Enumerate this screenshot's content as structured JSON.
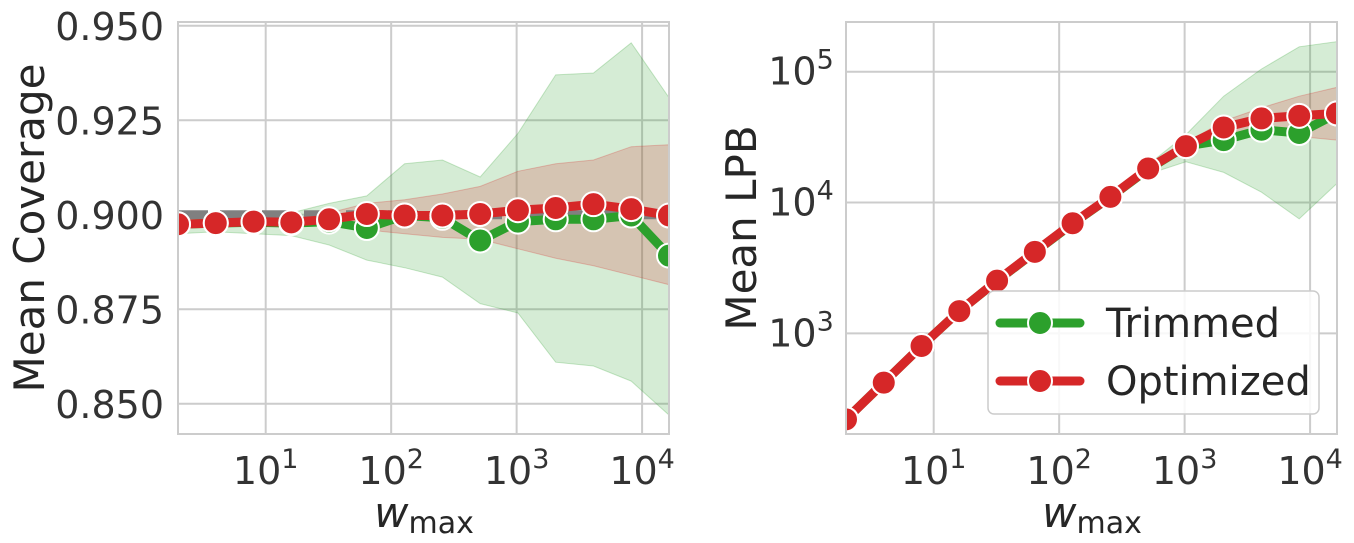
{
  "colors": {
    "trimmed": "#2ca02c",
    "optimized": "#d62728",
    "target": "#808080",
    "grid": "#cccccc",
    "spine": "#cccccc"
  },
  "legend": {
    "trimmed": "Trimmed",
    "optimized": "Optimized"
  },
  "chart_data": [
    {
      "type": "line",
      "xlabel": "w_max",
      "ylabel": "Mean Coverage",
      "xscale": "log",
      "xlim": [
        2,
        16384
      ],
      "ylim": [
        0.842,
        0.951
      ],
      "x_ticks": [
        {
          "v": 10,
          "m": "1"
        },
        {
          "v": 100,
          "m": "2"
        },
        {
          "v": 1000,
          "m": "3"
        },
        {
          "v": 10000,
          "m": "4"
        }
      ],
      "y_ticks": [
        "0.850",
        "0.875",
        "0.900",
        "0.925",
        "0.950"
      ],
      "y_tick_values": [
        0.85,
        0.875,
        0.9,
        0.925,
        0.95
      ],
      "target_line": 0.9,
      "x": [
        2,
        4,
        8,
        16,
        32,
        64,
        128,
        256,
        512,
        1024,
        2048,
        4096,
        8192,
        16384
      ],
      "series": [
        {
          "name": "Trimmed",
          "color_key": "trimmed",
          "values": [
            0.8975,
            0.8978,
            0.898,
            0.8978,
            0.8982,
            0.8965,
            0.8998,
            0.8992,
            0.8932,
            0.8982,
            0.8988,
            0.8988,
            0.8998,
            0.8892
          ],
          "lower": [
            0.895,
            0.8955,
            0.895,
            0.8945,
            0.892,
            0.888,
            0.886,
            0.8835,
            0.8765,
            0.874,
            0.861,
            0.86,
            0.856,
            0.847
          ],
          "upper": [
            0.8985,
            0.8988,
            0.8992,
            0.9005,
            0.903,
            0.905,
            0.9135,
            0.9145,
            0.91,
            0.9215,
            0.937,
            0.9375,
            0.9455,
            0.931
          ]
        },
        {
          "name": "Optimized",
          "color_key": "optimized",
          "values": [
            0.8975,
            0.8978,
            0.8982,
            0.898,
            0.8988,
            0.9002,
            0.8998,
            0.8998,
            0.9002,
            0.9012,
            0.9018,
            0.9028,
            0.9015,
            0.8998
          ],
          "lower": [
            0.8968,
            0.897,
            0.8972,
            0.8968,
            0.8972,
            0.896,
            0.895,
            0.894,
            0.8935,
            0.891,
            0.8885,
            0.8865,
            0.884,
            0.8815
          ],
          "upper": [
            0.8982,
            0.8985,
            0.8988,
            0.899,
            0.9005,
            0.903,
            0.904,
            0.9055,
            0.9075,
            0.9115,
            0.9135,
            0.9145,
            0.918,
            0.9185
          ]
        }
      ]
    },
    {
      "type": "line",
      "xlabel": "w_max",
      "ylabel": "Mean LPB",
      "xscale": "log",
      "yscale": "log",
      "xlim": [
        2,
        16384
      ],
      "ylim": [
        170,
        240000
      ],
      "x_ticks": [
        {
          "v": 10,
          "m": "1"
        },
        {
          "v": 100,
          "m": "2"
        },
        {
          "v": 1000,
          "m": "3"
        },
        {
          "v": 10000,
          "m": "4"
        }
      ],
      "y_ticks": [
        {
          "v": 1000,
          "m": "3"
        },
        {
          "v": 10000,
          "m": "4"
        },
        {
          "v": 100000,
          "m": "5"
        }
      ],
      "legend_position": "lower-right",
      "x": [
        2,
        4,
        8,
        16,
        32,
        64,
        128,
        256,
        512,
        1024,
        2048,
        4096,
        8192,
        16384
      ],
      "series": [
        {
          "name": "Trimmed",
          "color_key": "trimmed",
          "values": [
            220,
            420,
            800,
            1480,
            2520,
            4180,
            6900,
            11000,
            18000,
            27000,
            30000,
            36000,
            34000,
            48000
          ],
          "lower": [
            215,
            410,
            780,
            1440,
            2450,
            4050,
            6650,
            10500,
            16500,
            20500,
            17000,
            12000,
            7500,
            14000
          ],
          "upper": [
            225,
            430,
            820,
            1520,
            2600,
            4320,
            7150,
            11600,
            19500,
            33000,
            65000,
            105000,
            155000,
            170000
          ]
        },
        {
          "name": "Optimized",
          "color_key": "optimized",
          "values": [
            220,
            420,
            800,
            1480,
            2530,
            4200,
            6950,
            11050,
            18200,
            27000,
            37500,
            44000,
            46000,
            48000
          ],
          "lower": [
            218,
            416,
            795,
            1470,
            2500,
            4150,
            6850,
            10900,
            17800,
            25500,
            33000,
            35000,
            32000,
            30000
          ],
          "upper": [
            222,
            424,
            805,
            1490,
            2560,
            4250,
            7050,
            11200,
            18600,
            28500,
            42000,
            53000,
            65000,
            76000
          ]
        }
      ]
    }
  ]
}
